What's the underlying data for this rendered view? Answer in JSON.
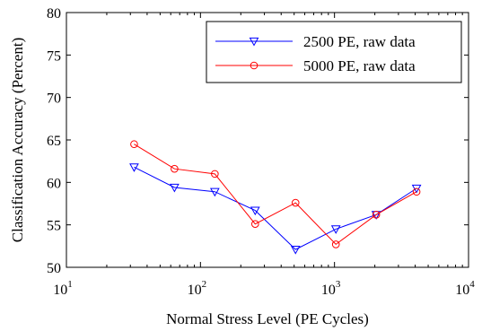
{
  "chart_data": {
    "type": "line",
    "xscale": "log",
    "xlim": [
      10,
      10000
    ],
    "ylim": [
      50,
      80
    ],
    "xlabel": "Normal Stress Level (PE Cycles)",
    "ylabel": "Classification Accuracy (Percent)",
    "x_ticks": [
      {
        "value": 10,
        "base": "10",
        "exp": "1"
      },
      {
        "value": 100,
        "base": "10",
        "exp": "2"
      },
      {
        "value": 1000,
        "base": "10",
        "exp": "3"
      },
      {
        "value": 10000,
        "base": "10",
        "exp": "4"
      }
    ],
    "y_ticks": [
      {
        "value": 50,
        "label": "50"
      },
      {
        "value": 55,
        "label": "55"
      },
      {
        "value": 60,
        "label": "60"
      },
      {
        "value": 65,
        "label": "65"
      },
      {
        "value": 70,
        "label": "70"
      },
      {
        "value": 75,
        "label": "75"
      },
      {
        "value": 80,
        "label": "80"
      }
    ],
    "grid": false,
    "legend_position": "top-right",
    "series": [
      {
        "name": "2500 PE, raw data",
        "color": "#0000ff",
        "marker": "triangle-down",
        "x": [
          32,
          64,
          128,
          256,
          512,
          1024,
          2048,
          4096
        ],
        "y": [
          61.8,
          59.4,
          58.9,
          56.7,
          52.1,
          54.5,
          56.2,
          59.3
        ]
      },
      {
        "name": "5000 PE, raw data",
        "color": "#ff0000",
        "marker": "circle",
        "x": [
          32,
          64,
          128,
          256,
          512,
          1024,
          2048,
          4096
        ],
        "y": [
          64.5,
          61.6,
          61.0,
          55.1,
          57.6,
          52.7,
          56.2,
          58.9
        ]
      }
    ]
  }
}
